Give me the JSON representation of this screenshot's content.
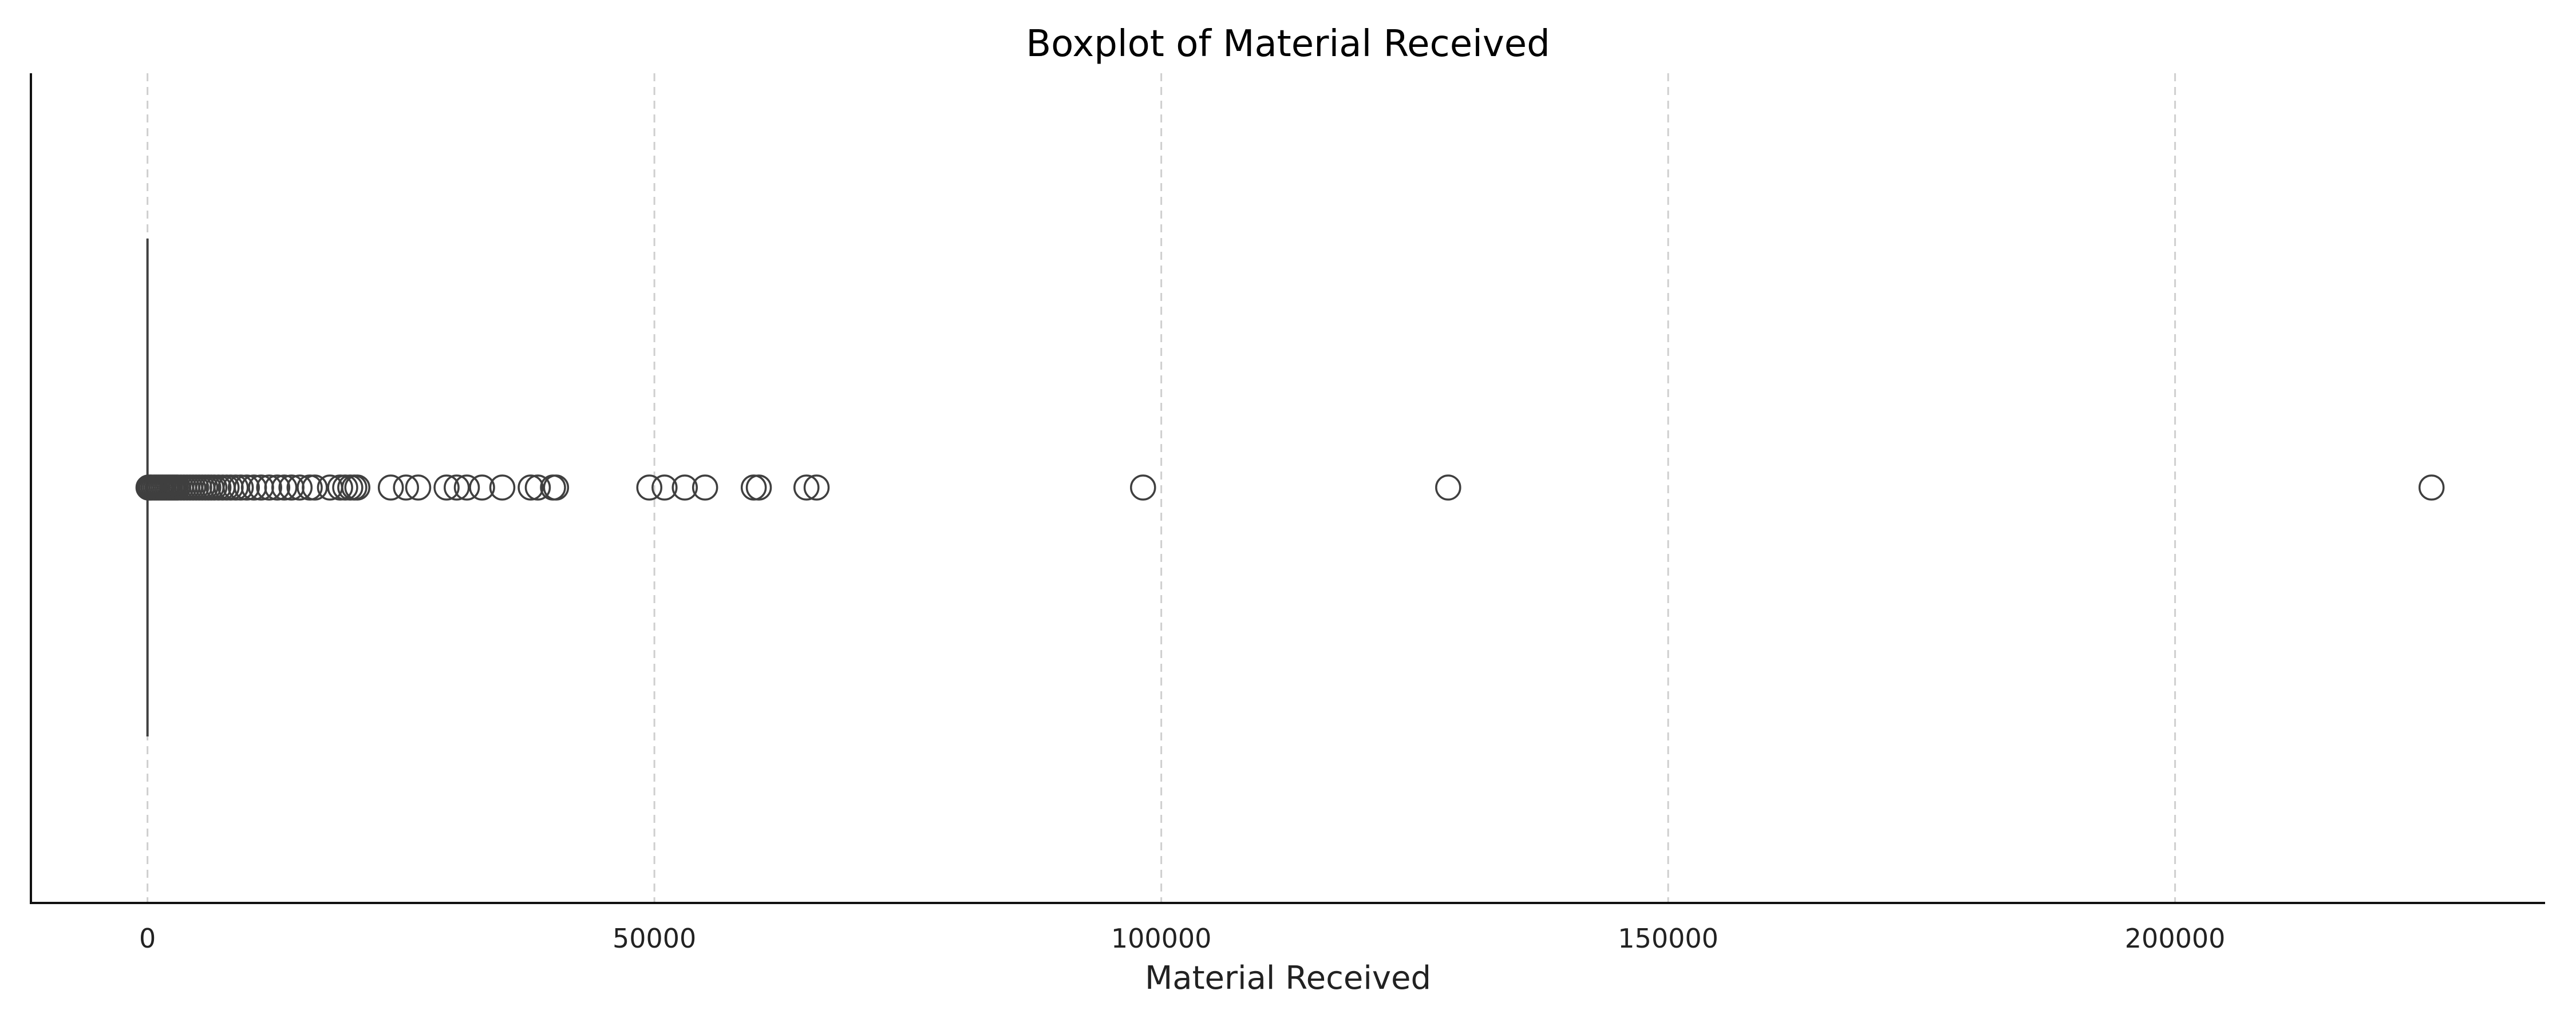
{
  "chart_data": {
    "type": "boxplot",
    "title": "Boxplot of Material Received",
    "xlabel": "Material Received",
    "ylabel": "",
    "orientation": "horizontal",
    "xlim": [
      -11500,
      236500
    ],
    "xticks": [
      0,
      50000,
      100000,
      150000,
      200000
    ],
    "xtick_labels": [
      "0",
      "50000",
      "100000",
      "150000",
      "200000"
    ],
    "grid": "vertical dashed",
    "box": {
      "q1": 0,
      "median": 0,
      "q3": 0,
      "whisker_low": 0,
      "whisker_high": 0
    },
    "outliers": [
      100,
      250,
      400,
      600,
      800,
      1000,
      1200,
      1400,
      1600,
      1800,
      2000,
      2200,
      2400,
      2600,
      2800,
      3000,
      3300,
      3600,
      3900,
      4200,
      4500,
      4800,
      5100,
      5400,
      5700,
      6000,
      6300,
      6600,
      7000,
      7400,
      7800,
      8200,
      8700,
      9200,
      9800,
      10500,
      11200,
      12000,
      12800,
      13500,
      14200,
      15000,
      16000,
      16500,
      18000,
      19000,
      19500,
      20000,
      20400,
      20700,
      24000,
      25500,
      26700,
      29500,
      30500,
      31500,
      33000,
      35000,
      37800,
      38500,
      40000,
      40300,
      49500,
      51000,
      53000,
      55000,
      59800,
      60300,
      65000,
      66000,
      98200,
      128300,
      225300
    ],
    "colors": {
      "line": "#3f3f3f",
      "grid": "#cfcfcf",
      "axis": "#111111"
    }
  }
}
